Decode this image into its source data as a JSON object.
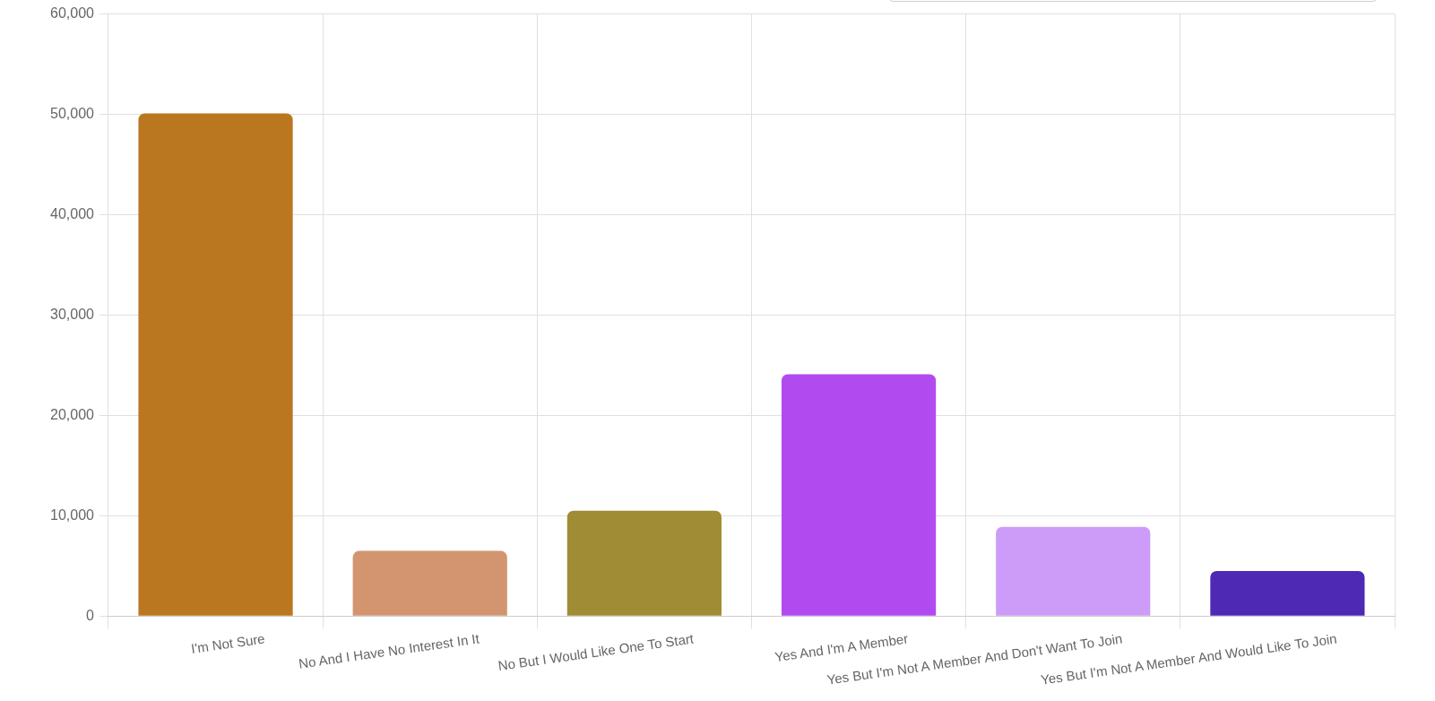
{
  "chart_data": {
    "type": "bar",
    "categories": [
      "I'm Not Sure",
      "No And I Have No Interest In It",
      "No But I Would Like One To Start",
      "Yes And I'm A Member",
      "Yes But I'm Not A Member And Don't Want To Join",
      "Yes But I'm Not A Member And Would Like To Join"
    ],
    "values": [
      50100,
      6500,
      10500,
      24100,
      8900,
      4500
    ],
    "colors": [
      "#bb7620",
      "#d39470",
      "#a08c34",
      "#b24bef",
      "#cd9cf9",
      "#4e2ab4"
    ],
    "ylim": [
      0,
      60000
    ],
    "yticks": [
      0,
      {
        "value": 10000,
        "label": "10,000"
      },
      {
        "value": 20000,
        "label": "20,000"
      },
      {
        "value": 30000,
        "label": "30,000"
      },
      {
        "value": 40000,
        "label": "40,000"
      },
      {
        "value": 50000,
        "label": "50,000"
      },
      {
        "value": 60000,
        "label": "60,000"
      }
    ],
    "grid": true,
    "legend": false
  }
}
